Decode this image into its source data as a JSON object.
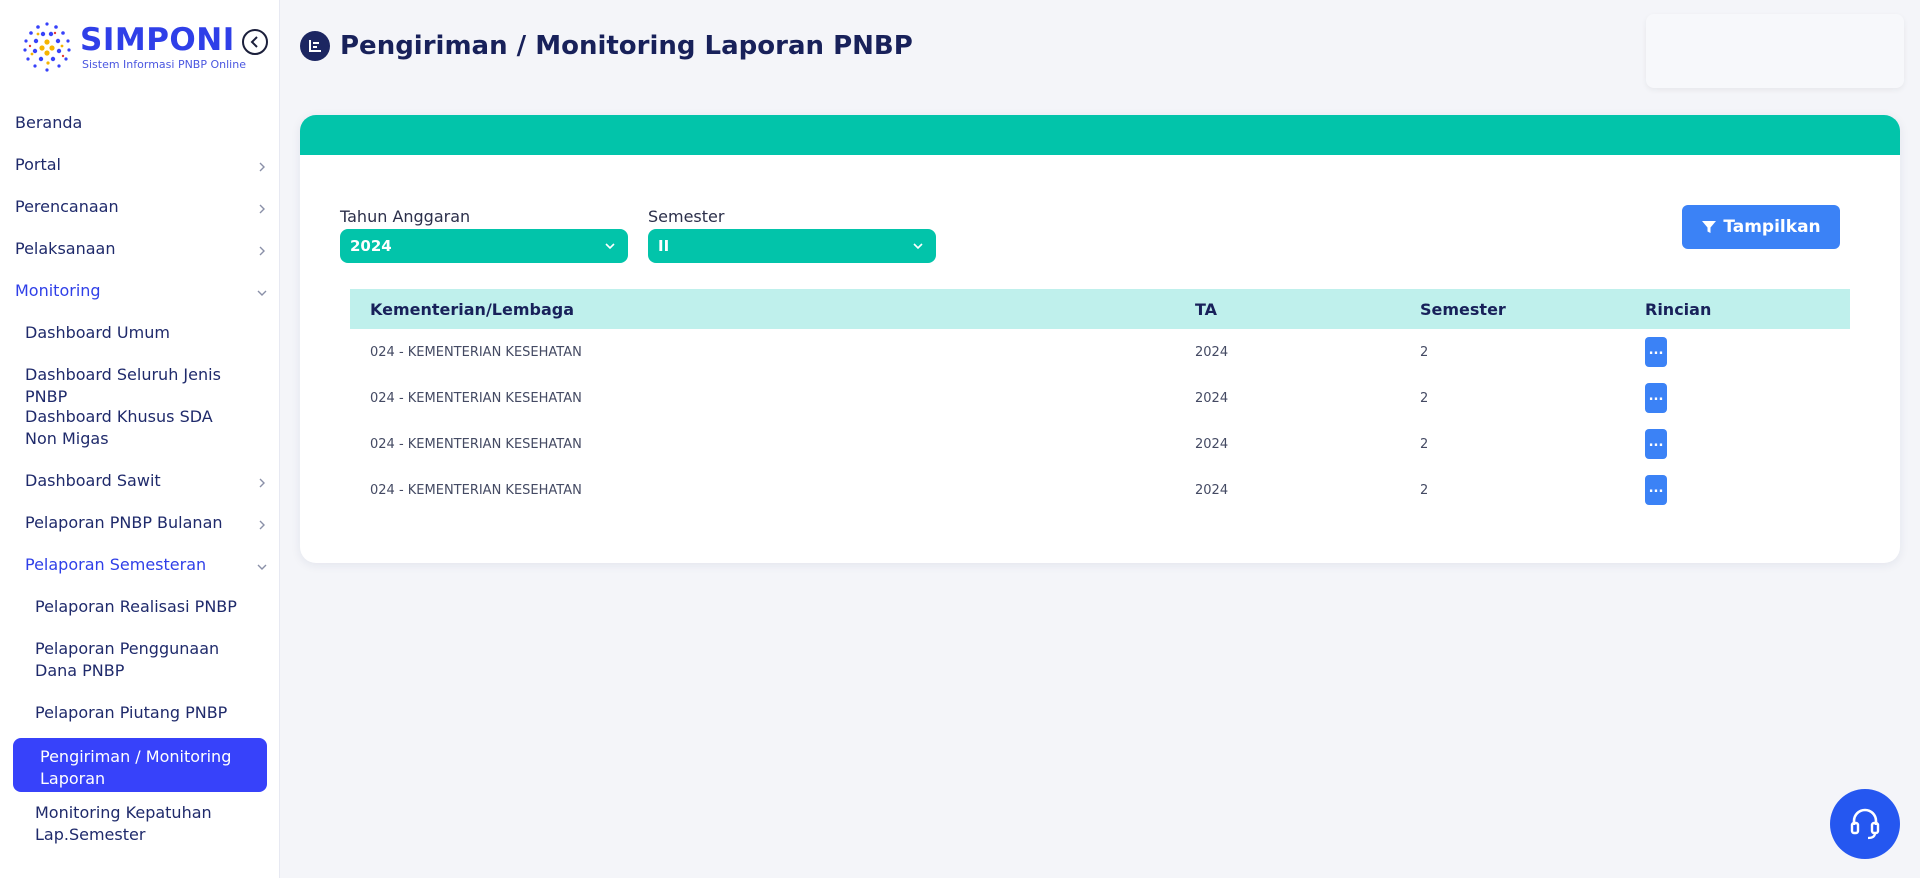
{
  "brand": {
    "name": "SIMPONI",
    "subtitle": "Sistem Informasi PNBP Online"
  },
  "sidebar": {
    "items": [
      {
        "label": "Beranda"
      },
      {
        "label": "Portal"
      },
      {
        "label": "Perencanaan"
      },
      {
        "label": "Pelaksanaan"
      },
      {
        "label": "Monitoring"
      },
      {
        "label": "Dashboard Umum"
      },
      {
        "label": "Dashboard Seluruh Jenis PNBP"
      },
      {
        "label": "Dashboard Khusus SDA Non Migas"
      },
      {
        "label": "Dashboard Sawit"
      },
      {
        "label": "Pelaporan PNBP Bulanan"
      },
      {
        "label": "Pelaporan Semesteran"
      },
      {
        "label": "Pelaporan Realisasi PNBP"
      },
      {
        "label": "Pelaporan Penggunaan Dana PNBP"
      },
      {
        "label": "Pelaporan Piutang PNBP"
      },
      {
        "label": "Pengiriman / Monitoring Laporan"
      },
      {
        "label": "Monitoring Kepatuhan Lap.Semester"
      }
    ]
  },
  "header": {
    "title": "Pengiriman / Monitoring Laporan PNBP"
  },
  "filters": {
    "year_label": "Tahun Anggaran",
    "year_value": "2024",
    "semester_label": "Semester",
    "semester_value": "II",
    "show_button": "Tampilkan"
  },
  "table": {
    "headers": [
      "Kementerian/Lembaga",
      "TA",
      "Semester",
      "Rincian"
    ],
    "rows": [
      {
        "ministry": "024 - KEMENTERIAN KESEHATAN",
        "ta": "2024",
        "semester": "2",
        "detail": "..."
      },
      {
        "ministry": "024 - KEMENTERIAN KESEHATAN",
        "ta": "2024",
        "semester": "2",
        "detail": "..."
      },
      {
        "ministry": "024 - KEMENTERIAN KESEHATAN",
        "ta": "2024",
        "semester": "2",
        "detail": "..."
      },
      {
        "ministry": "024 - KEMENTERIAN KESEHATAN",
        "ta": "2024",
        "semester": "2",
        "detail": "..."
      }
    ]
  },
  "colors": {
    "accent": "#02c4aa",
    "primary": "#3742fa",
    "button": "#3b82f6",
    "title": "#18215a"
  }
}
